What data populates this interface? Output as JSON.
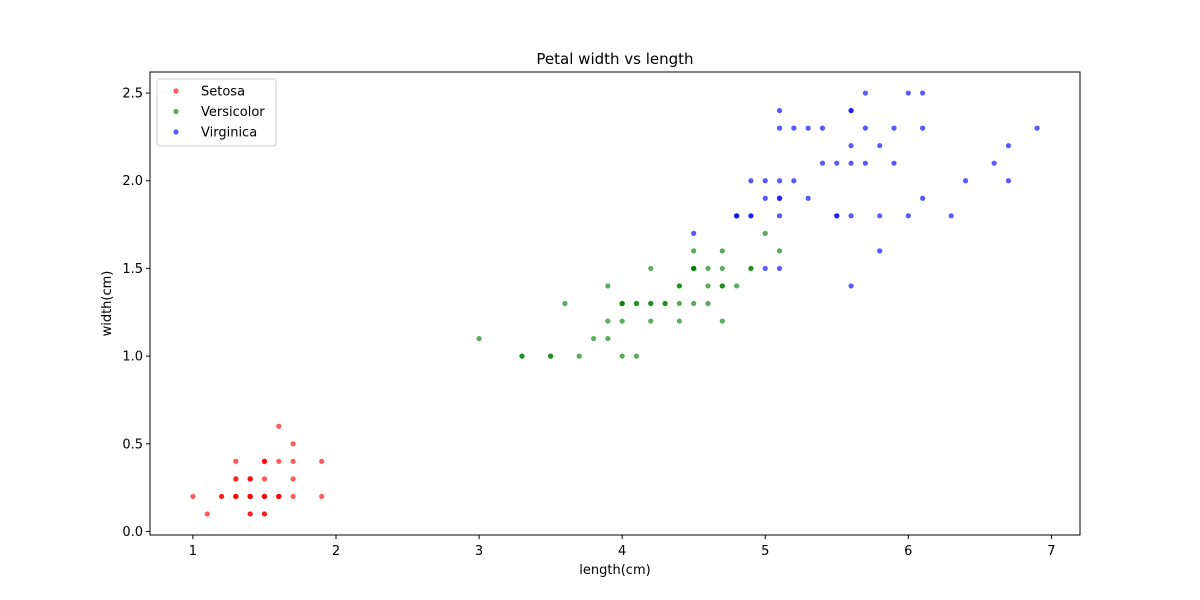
{
  "chart_data": {
    "type": "scatter",
    "title": "Petal width vs length",
    "xlabel": "length(cm)",
    "ylabel": "width(cm)",
    "xlim": [
      0.7,
      7.2
    ],
    "ylim": [
      -0.02,
      2.62
    ],
    "xticks": [
      1,
      2,
      3,
      4,
      5,
      6,
      7
    ],
    "yticks": [
      0.0,
      0.5,
      1.0,
      1.5,
      2.0,
      2.5
    ],
    "xtick_labels": [
      "1",
      "2",
      "3",
      "4",
      "5",
      "6",
      "7"
    ],
    "ytick_labels": [
      "0.0",
      "0.5",
      "1.0",
      "1.5",
      "2.0",
      "2.5"
    ],
    "grid": false,
    "legend": "upper-left",
    "series": [
      {
        "name": "Setosa",
        "color": "#ff0000",
        "points": [
          [
            1.4,
            0.2
          ],
          [
            1.4,
            0.2
          ],
          [
            1.3,
            0.2
          ],
          [
            1.5,
            0.2
          ],
          [
            1.4,
            0.2
          ],
          [
            1.7,
            0.4
          ],
          [
            1.4,
            0.3
          ],
          [
            1.5,
            0.2
          ],
          [
            1.4,
            0.2
          ],
          [
            1.5,
            0.1
          ],
          [
            1.5,
            0.2
          ],
          [
            1.6,
            0.2
          ],
          [
            1.4,
            0.1
          ],
          [
            1.1,
            0.1
          ],
          [
            1.2,
            0.2
          ],
          [
            1.5,
            0.4
          ],
          [
            1.3,
            0.4
          ],
          [
            1.4,
            0.3
          ],
          [
            1.7,
            0.3
          ],
          [
            1.5,
            0.3
          ],
          [
            1.7,
            0.2
          ],
          [
            1.5,
            0.4
          ],
          [
            1.0,
            0.2
          ],
          [
            1.7,
            0.5
          ],
          [
            1.9,
            0.2
          ],
          [
            1.6,
            0.2
          ],
          [
            1.6,
            0.4
          ],
          [
            1.5,
            0.2
          ],
          [
            1.4,
            0.2
          ],
          [
            1.6,
            0.2
          ],
          [
            1.6,
            0.2
          ],
          [
            1.5,
            0.4
          ],
          [
            1.5,
            0.1
          ],
          [
            1.4,
            0.2
          ],
          [
            1.5,
            0.2
          ],
          [
            1.2,
            0.2
          ],
          [
            1.3,
            0.2
          ],
          [
            1.4,
            0.1
          ],
          [
            1.3,
            0.2
          ],
          [
            1.5,
            0.2
          ],
          [
            1.3,
            0.3
          ],
          [
            1.3,
            0.3
          ],
          [
            1.3,
            0.2
          ],
          [
            1.6,
            0.6
          ],
          [
            1.9,
            0.4
          ],
          [
            1.4,
            0.3
          ],
          [
            1.6,
            0.2
          ],
          [
            1.4,
            0.2
          ],
          [
            1.5,
            0.2
          ],
          [
            1.4,
            0.2
          ]
        ]
      },
      {
        "name": "Versicolor",
        "color": "#008000",
        "points": [
          [
            4.7,
            1.4
          ],
          [
            4.5,
            1.5
          ],
          [
            4.9,
            1.5
          ],
          [
            4.0,
            1.3
          ],
          [
            4.6,
            1.5
          ],
          [
            4.5,
            1.3
          ],
          [
            4.7,
            1.6
          ],
          [
            3.3,
            1.0
          ],
          [
            4.6,
            1.3
          ],
          [
            3.9,
            1.4
          ],
          [
            3.5,
            1.0
          ],
          [
            4.2,
            1.5
          ],
          [
            4.0,
            1.0
          ],
          [
            4.7,
            1.4
          ],
          [
            3.6,
            1.3
          ],
          [
            4.4,
            1.4
          ],
          [
            4.5,
            1.5
          ],
          [
            4.1,
            1.0
          ],
          [
            4.5,
            1.5
          ],
          [
            3.9,
            1.1
          ],
          [
            4.8,
            1.8
          ],
          [
            4.0,
            1.3
          ],
          [
            4.9,
            1.5
          ],
          [
            4.7,
            1.2
          ],
          [
            4.3,
            1.3
          ],
          [
            4.4,
            1.4
          ],
          [
            4.8,
            1.4
          ],
          [
            5.0,
            1.7
          ],
          [
            4.5,
            1.5
          ],
          [
            3.5,
            1.0
          ],
          [
            3.8,
            1.1
          ],
          [
            3.7,
            1.0
          ],
          [
            3.9,
            1.2
          ],
          [
            5.1,
            1.6
          ],
          [
            4.5,
            1.5
          ],
          [
            4.5,
            1.6
          ],
          [
            4.7,
            1.5
          ],
          [
            4.4,
            1.3
          ],
          [
            4.1,
            1.3
          ],
          [
            4.0,
            1.3
          ],
          [
            4.4,
            1.2
          ],
          [
            4.6,
            1.4
          ],
          [
            4.0,
            1.2
          ],
          [
            3.3,
            1.0
          ],
          [
            4.2,
            1.3
          ],
          [
            4.2,
            1.2
          ],
          [
            4.2,
            1.3
          ],
          [
            4.3,
            1.3
          ],
          [
            3.0,
            1.1
          ],
          [
            4.1,
            1.3
          ]
        ]
      },
      {
        "name": "Virginica",
        "color": "#0000ff",
        "points": [
          [
            6.0,
            2.5
          ],
          [
            5.1,
            1.9
          ],
          [
            5.9,
            2.1
          ],
          [
            5.6,
            1.8
          ],
          [
            5.8,
            2.2
          ],
          [
            6.6,
            2.1
          ],
          [
            4.5,
            1.7
          ],
          [
            6.3,
            1.8
          ],
          [
            5.8,
            1.8
          ],
          [
            6.1,
            2.5
          ],
          [
            5.1,
            2.0
          ],
          [
            5.3,
            1.9
          ],
          [
            5.5,
            2.1
          ],
          [
            5.0,
            2.0
          ],
          [
            5.1,
            2.4
          ],
          [
            5.3,
            2.3
          ],
          [
            5.5,
            1.8
          ],
          [
            6.7,
            2.2
          ],
          [
            6.9,
            2.3
          ],
          [
            5.0,
            1.5
          ],
          [
            5.7,
            2.3
          ],
          [
            4.9,
            2.0
          ],
          [
            6.7,
            2.0
          ],
          [
            4.9,
            1.8
          ],
          [
            5.7,
            2.1
          ],
          [
            6.0,
            1.8
          ],
          [
            4.8,
            1.8
          ],
          [
            4.9,
            1.8
          ],
          [
            5.6,
            2.1
          ],
          [
            5.8,
            1.6
          ],
          [
            6.1,
            1.9
          ],
          [
            6.4,
            2.0
          ],
          [
            5.6,
            2.2
          ],
          [
            5.1,
            1.5
          ],
          [
            5.6,
            1.4
          ],
          [
            6.1,
            2.3
          ],
          [
            5.6,
            2.4
          ],
          [
            5.5,
            1.8
          ],
          [
            4.8,
            1.8
          ],
          [
            5.4,
            2.1
          ],
          [
            5.6,
            2.4
          ],
          [
            5.1,
            2.3
          ],
          [
            5.1,
            1.9
          ],
          [
            5.9,
            2.3
          ],
          [
            5.7,
            2.5
          ],
          [
            5.2,
            2.3
          ],
          [
            5.0,
            1.9
          ],
          [
            5.2,
            2.0
          ],
          [
            5.4,
            2.3
          ],
          [
            5.1,
            1.8
          ]
        ]
      }
    ]
  }
}
